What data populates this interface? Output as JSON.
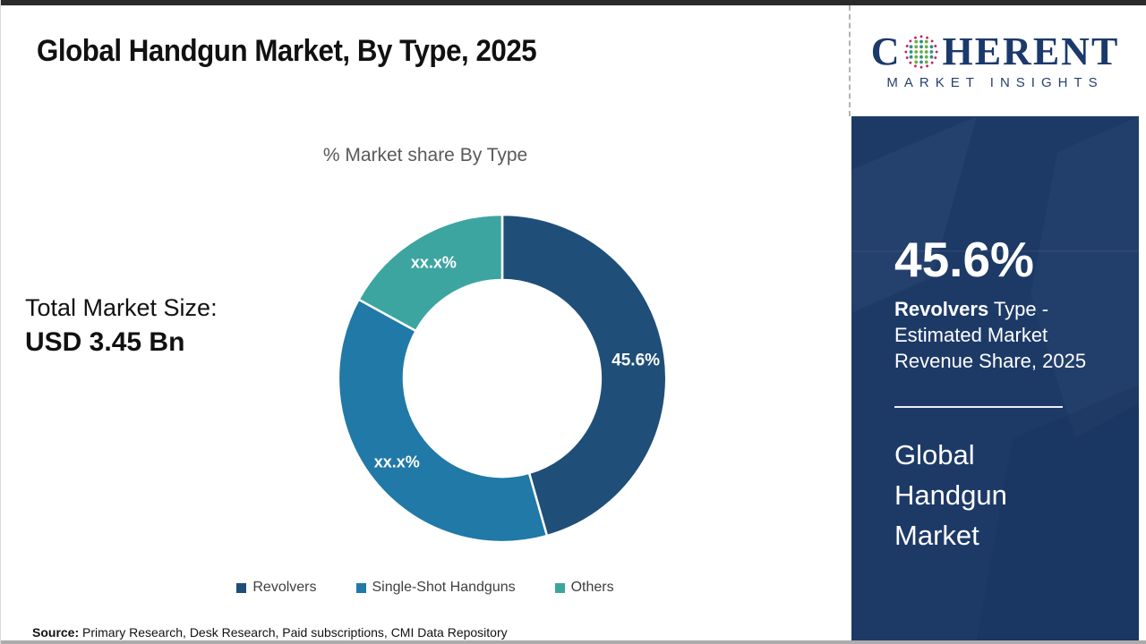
{
  "page": {
    "title": "Global Handgun Market, By Type, 2025",
    "total_market": {
      "label": "Total Market Size:",
      "value": "USD 3.45 Bn"
    },
    "source": {
      "label": "Source:",
      "text": " Primary Research, Desk Research, Paid subscriptions, CMI Data Repository"
    }
  },
  "logo": {
    "word_start": "C",
    "word_end": "HERENT",
    "subtitle": "MARKET INSIGHTS"
  },
  "sidebar": {
    "stat_value": "45.6%",
    "stat_desc_bold": "Revolvers",
    "stat_desc_line1_rest": " Type -",
    "stat_desc_line2": "Estimated Market",
    "stat_desc_line3": "Revenue Share, 2025",
    "panel_title_lines": {
      "0": "Global",
      "1": "Handgun",
      "2": "Market"
    },
    "panel_bg": "#1d3a67"
  },
  "chart_data": {
    "type": "pie",
    "donut": true,
    "title": "% Market share By Type",
    "legend_position": "bottom",
    "start_angle_deg": 0,
    "segments": [
      {
        "label": "Revolvers",
        "value": 45.6,
        "display": "45.6%",
        "color": "#1f4e79"
      },
      {
        "label": "Single-Shot Handguns",
        "value": 37.4,
        "display": "xx.x%",
        "color": "#2079a7"
      },
      {
        "label": "Others",
        "value": 17.0,
        "display": "xx.x%",
        "color": "#3da5a0"
      }
    ],
    "note": "Two segment values are masked in the source image as xx.x%; 37.4 and 17.0 are estimates from arc angles"
  }
}
